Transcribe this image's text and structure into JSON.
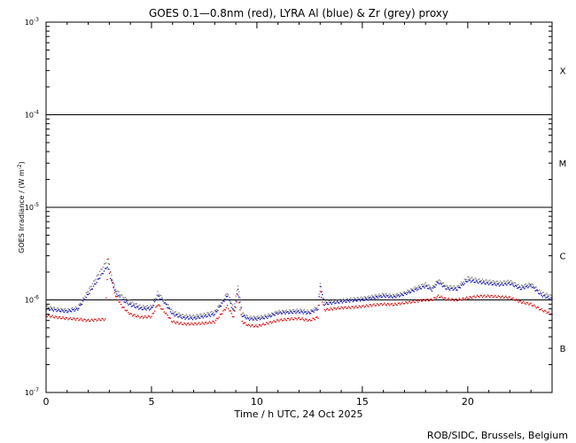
{
  "chart_data": {
    "type": "scatter",
    "title": "GOES 0.1—0.8nm (red), LYRA Al (blue) & Zr (grey) proxy",
    "xlabel": "Time / h UTC, 24 Oct 2025",
    "ylabel_main": "GOES Irradiance / (W m",
    "ylabel_exp": "-2",
    "ylabel_close": ")",
    "xlim": [
      0,
      24
    ],
    "ylim_log10": [
      -7,
      -3
    ],
    "yscale": "log",
    "x_ticks": [
      {
        "value": 0,
        "label": "0"
      },
      {
        "value": 5,
        "label": "5"
      },
      {
        "value": 10,
        "label": "10"
      },
      {
        "value": 15,
        "label": "15"
      },
      {
        "value": 20,
        "label": "20"
      }
    ],
    "y_ticks": [
      {
        "exp": -3,
        "base": "10",
        "power": "-3"
      },
      {
        "exp": -4,
        "base": "10",
        "power": "-4"
      },
      {
        "exp": -5,
        "base": "10",
        "power": "-5"
      },
      {
        "exp": -6,
        "base": "10",
        "power": "-6"
      },
      {
        "exp": -7,
        "base": "10",
        "power": "-7"
      }
    ],
    "class_lines": [
      0.0001,
      1e-05,
      1e-06
    ],
    "class_labels": [
      {
        "label": "X",
        "y": 0.0003
      },
      {
        "label": "M",
        "y": 3e-05
      },
      {
        "label": "C",
        "y": 3e-06
      },
      {
        "label": "B",
        "y": 3e-07
      }
    ],
    "series": [
      {
        "color": "#808080",
        "points": [
          [
            0,
            8.5e-07
          ],
          [
            0.5,
            8e-07
          ],
          [
            1,
            7.8e-07
          ],
          [
            1.5,
            8.3e-07
          ],
          [
            2.9,
            2.7e-06
          ],
          [
            3.1,
            1.8e-06
          ],
          [
            3.3,
            1.3e-06
          ],
          [
            3.6,
            1.1e-06
          ],
          [
            4.0,
            9.5e-07
          ],
          [
            4.5,
            8.5e-07
          ],
          [
            5.0,
            8.5e-07
          ],
          [
            5.3,
            1.2e-06
          ],
          [
            5.6,
            1e-06
          ],
          [
            6.0,
            7.5e-07
          ],
          [
            6.5,
            6.8e-07
          ],
          [
            7.0,
            6.7e-07
          ],
          [
            7.5,
            7e-07
          ],
          [
            8.0,
            7.5e-07
          ],
          [
            8.4,
            1e-06
          ],
          [
            8.6,
            1.2e-06
          ],
          [
            8.9,
            8e-07
          ],
          [
            9.1,
            1.45e-06
          ],
          [
            9.3,
            7.2e-07
          ],
          [
            9.6,
            6.5e-07
          ],
          [
            10.0,
            6.5e-07
          ],
          [
            10.5,
            6.8e-07
          ],
          [
            11.0,
            7.5e-07
          ],
          [
            11.5,
            7.6e-07
          ],
          [
            12.0,
            7.8e-07
          ],
          [
            12.5,
            7.5e-07
          ],
          [
            12.9,
            8.5e-07
          ],
          [
            13.0,
            1.55e-06
          ],
          [
            13.2,
            9.5e-07
          ],
          [
            13.6,
            9.8e-07
          ],
          [
            14.0,
            1e-06
          ],
          [
            14.5,
            1.03e-06
          ],
          [
            15.0,
            1.05e-06
          ],
          [
            15.5,
            1.1e-06
          ],
          [
            16.0,
            1.15e-06
          ],
          [
            16.5,
            1.12e-06
          ],
          [
            17.0,
            1.2e-06
          ],
          [
            17.5,
            1.35e-06
          ],
          [
            18.0,
            1.5e-06
          ],
          [
            18.3,
            1.35e-06
          ],
          [
            18.6,
            1.65e-06
          ],
          [
            19.0,
            1.4e-06
          ],
          [
            19.5,
            1.38e-06
          ],
          [
            20.0,
            1.75e-06
          ],
          [
            20.5,
            1.65e-06
          ],
          [
            21.0,
            1.6e-06
          ],
          [
            21.5,
            1.55e-06
          ],
          [
            22.0,
            1.6e-06
          ],
          [
            22.5,
            1.4e-06
          ],
          [
            23.0,
            1.5e-06
          ],
          [
            23.5,
            1.2e-06
          ],
          [
            24.0,
            1.1e-06
          ]
        ]
      },
      {
        "color": "#1010b0",
        "points": [
          [
            0,
            8e-07
          ],
          [
            0.5,
            7.7e-07
          ],
          [
            1,
            7.5e-07
          ],
          [
            1.5,
            7.9e-07
          ],
          [
            2.9,
            2.3e-06
          ],
          [
            3.1,
            1.6e-06
          ],
          [
            3.3,
            1.2e-06
          ],
          [
            3.6,
            1e-06
          ],
          [
            4.0,
            8.8e-07
          ],
          [
            4.5,
            8e-07
          ],
          [
            5.0,
            8e-07
          ],
          [
            5.3,
            1.1e-06
          ],
          [
            5.6,
            9.5e-07
          ],
          [
            6.0,
            7e-07
          ],
          [
            6.5,
            6.4e-07
          ],
          [
            7.0,
            6.3e-07
          ],
          [
            7.5,
            6.6e-07
          ],
          [
            8.0,
            7e-07
          ],
          [
            8.4,
            9.5e-07
          ],
          [
            8.6,
            1.1e-06
          ],
          [
            8.9,
            7.5e-07
          ],
          [
            9.1,
            1.3e-06
          ],
          [
            9.3,
            6.8e-07
          ],
          [
            9.6,
            6.2e-07
          ],
          [
            10.0,
            6.2e-07
          ],
          [
            10.5,
            6.5e-07
          ],
          [
            11.0,
            7.2e-07
          ],
          [
            11.5,
            7.3e-07
          ],
          [
            12.0,
            7.4e-07
          ],
          [
            12.5,
            7.2e-07
          ],
          [
            12.9,
            8e-07
          ],
          [
            13.0,
            1.4e-06
          ],
          [
            13.2,
            9e-07
          ],
          [
            13.6,
            9.3e-07
          ],
          [
            14.0,
            9.5e-07
          ],
          [
            14.5,
            9.8e-07
          ],
          [
            15.0,
            1e-06
          ],
          [
            15.5,
            1.05e-06
          ],
          [
            16.0,
            1.1e-06
          ],
          [
            16.5,
            1.07e-06
          ],
          [
            17.0,
            1.15e-06
          ],
          [
            17.5,
            1.28e-06
          ],
          [
            18.0,
            1.4e-06
          ],
          [
            18.3,
            1.28e-06
          ],
          [
            18.6,
            1.55e-06
          ],
          [
            19.0,
            1.32e-06
          ],
          [
            19.5,
            1.3e-06
          ],
          [
            20.0,
            1.62e-06
          ],
          [
            20.5,
            1.55e-06
          ],
          [
            21.0,
            1.5e-06
          ],
          [
            21.5,
            1.45e-06
          ],
          [
            22.0,
            1.5e-06
          ],
          [
            22.5,
            1.32e-06
          ],
          [
            23.0,
            1.42e-06
          ],
          [
            23.5,
            1.12e-06
          ],
          [
            24.0,
            1.02e-06
          ]
        ]
      },
      {
        "color": "#e00000",
        "points": [
          [
            0,
            6.8e-07
          ],
          [
            0.5,
            6.5e-07
          ],
          [
            1,
            6.3e-07
          ],
          [
            1.5,
            6.2e-07
          ],
          [
            2.0,
            6e-07
          ],
          [
            2.8,
            6.2e-07
          ],
          [
            2.95,
            2.8e-06
          ],
          [
            3.1,
            1.7e-06
          ],
          [
            3.3,
            1.1e-06
          ],
          [
            3.6,
            8.5e-07
          ],
          [
            4.0,
            7e-07
          ],
          [
            4.5,
            6.5e-07
          ],
          [
            5.0,
            6.6e-07
          ],
          [
            5.3,
            9e-07
          ],
          [
            5.6,
            7.5e-07
          ],
          [
            6.0,
            5.8e-07
          ],
          [
            6.5,
            5.5e-07
          ],
          [
            7.0,
            5.5e-07
          ],
          [
            7.5,
            5.6e-07
          ],
          [
            8.0,
            5.8e-07
          ],
          [
            8.4,
            7.5e-07
          ],
          [
            8.6,
            8.5e-07
          ],
          [
            8.9,
            6.5e-07
          ],
          [
            9.1,
            1.1e-06
          ],
          [
            9.3,
            5.8e-07
          ],
          [
            9.6,
            5.3e-07
          ],
          [
            10.0,
            5.2e-07
          ],
          [
            10.5,
            5.6e-07
          ],
          [
            11.0,
            6e-07
          ],
          [
            11.5,
            6.2e-07
          ],
          [
            12.0,
            6.3e-07
          ],
          [
            12.5,
            6e-07
          ],
          [
            12.9,
            6.5e-07
          ],
          [
            13.0,
            1.2e-06
          ],
          [
            13.2,
            7.8e-07
          ],
          [
            13.6,
            8e-07
          ],
          [
            14.0,
            8.2e-07
          ],
          [
            14.5,
            8.3e-07
          ],
          [
            15.0,
            8.5e-07
          ],
          [
            15.5,
            8.8e-07
          ],
          [
            16.0,
            9e-07
          ],
          [
            16.5,
            8.9e-07
          ],
          [
            17.0,
            9.3e-07
          ],
          [
            17.5,
            9.6e-07
          ],
          [
            18.0,
            1e-06
          ],
          [
            18.3,
            1e-06
          ],
          [
            18.6,
            1.1e-06
          ],
          [
            19.0,
            1.02e-06
          ],
          [
            19.5,
            1e-06
          ],
          [
            20.0,
            1.05e-06
          ],
          [
            20.5,
            1.1e-06
          ],
          [
            21.0,
            1.1e-06
          ],
          [
            21.5,
            1.08e-06
          ],
          [
            22.0,
            1.06e-06
          ],
          [
            22.5,
            9.5e-07
          ],
          [
            23.0,
            9e-07
          ],
          [
            23.5,
            7.8e-07
          ],
          [
            24.0,
            7e-07
          ]
        ]
      }
    ]
  },
  "footer": {
    "credit": "ROB/SIDC, Brussels, Belgium"
  }
}
